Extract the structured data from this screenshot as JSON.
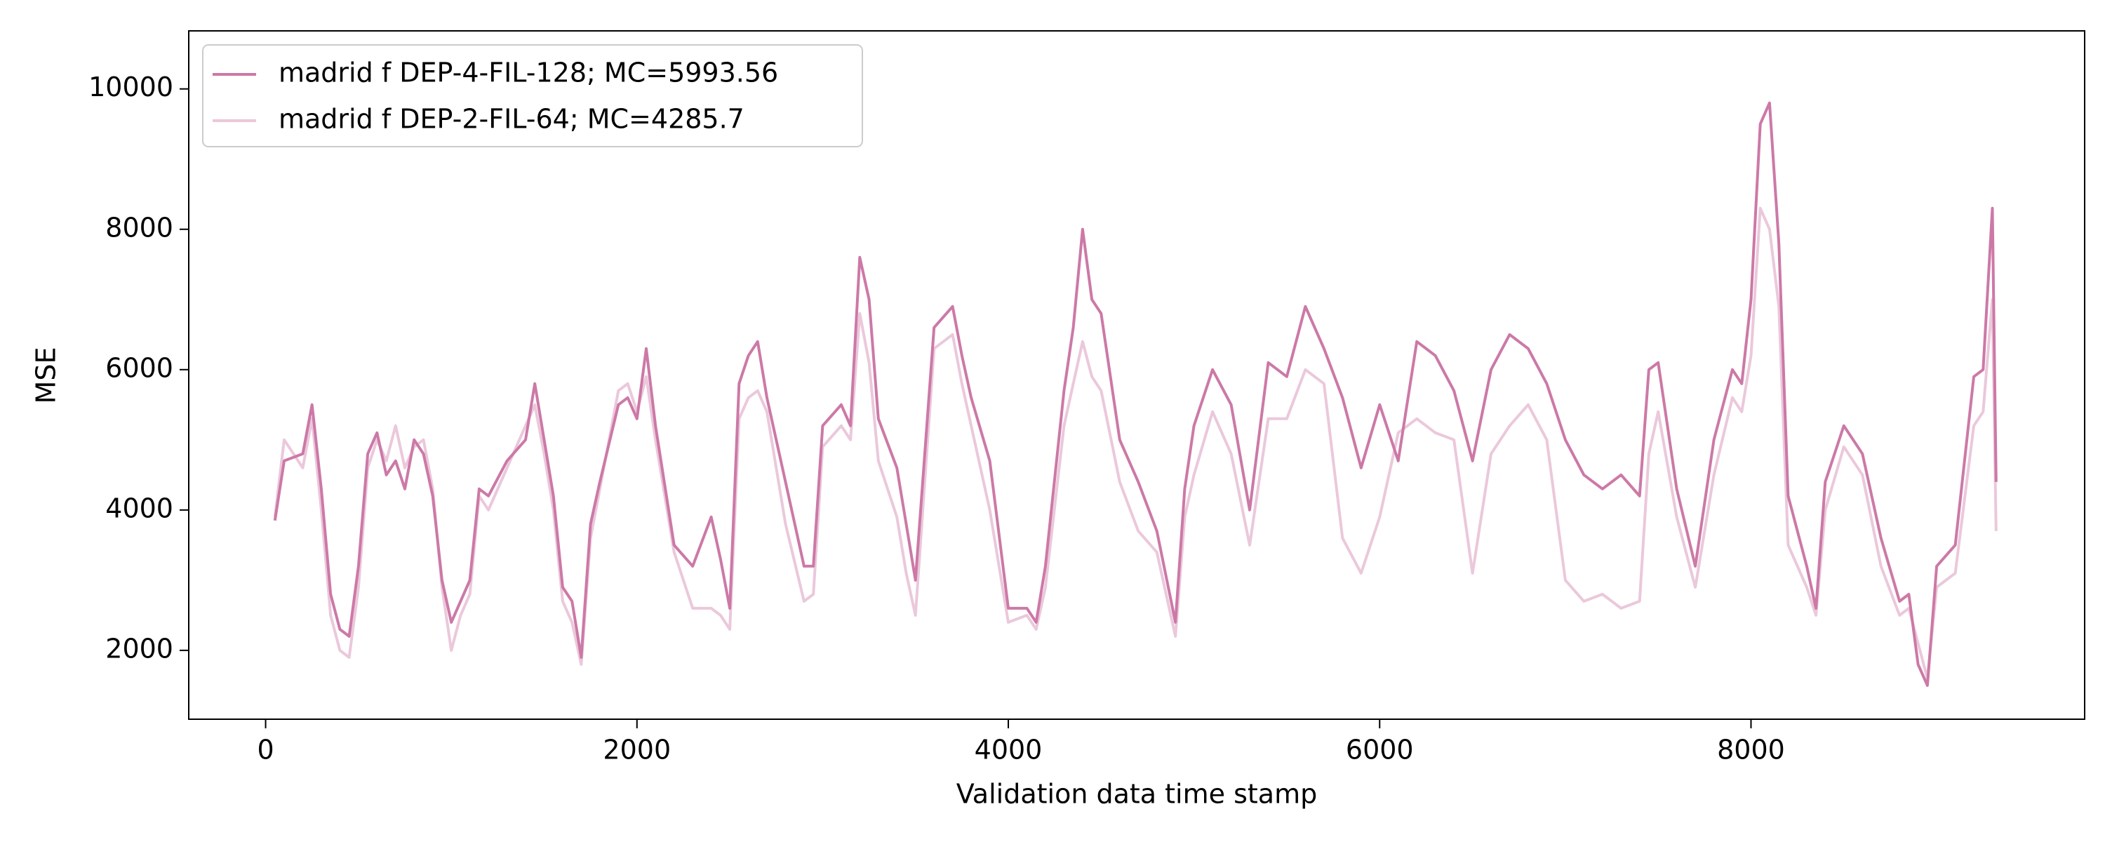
{
  "chart_data": {
    "type": "line",
    "xlabel": "Validation data time stamp",
    "ylabel": "MSE",
    "xlim": [
      -414,
      9797
    ],
    "ylim": [
      1019,
      10827
    ],
    "xticks": [
      0,
      2000,
      4000,
      6000,
      8000
    ],
    "yticks": [
      2000,
      4000,
      6000,
      8000,
      10000
    ],
    "legend": "upper left",
    "x": [
      50,
      100,
      200,
      250,
      300,
      350,
      400,
      450,
      500,
      550,
      600,
      650,
      700,
      750,
      800,
      850,
      900,
      950,
      1000,
      1050,
      1100,
      1150,
      1200,
      1300,
      1400,
      1450,
      1500,
      1550,
      1600,
      1650,
      1700,
      1750,
      1800,
      1900,
      1950,
      2000,
      2050,
      2100,
      2200,
      2300,
      2400,
      2450,
      2500,
      2550,
      2600,
      2650,
      2700,
      2800,
      2900,
      2950,
      3000,
      3100,
      3150,
      3200,
      3250,
      3300,
      3400,
      3450,
      3500,
      3600,
      3700,
      3750,
      3800,
      3900,
      4000,
      4100,
      4150,
      4200,
      4300,
      4350,
      4400,
      4450,
      4500,
      4600,
      4700,
      4800,
      4900,
      4950,
      5000,
      5100,
      5200,
      5300,
      5400,
      5500,
      5600,
      5700,
      5800,
      5900,
      6000,
      6100,
      6200,
      6300,
      6400,
      6500,
      6600,
      6700,
      6800,
      6900,
      7000,
      7100,
      7200,
      7300,
      7400,
      7450,
      7500,
      7600,
      7700,
      7800,
      7900,
      7950,
      8000,
      8050,
      8100,
      8150,
      8200,
      8300,
      8350,
      8400,
      8500,
      8600,
      8700,
      8800,
      8850,
      8900,
      8950,
      9000,
      9100,
      9200,
      9250,
      9300,
      9320
    ],
    "series": [
      {
        "name": "madrid f DEP-4-FIL-128; MC=5993.56",
        "color": "#cc79a7",
        "values": [
          3850,
          4700,
          4800,
          5500,
          4300,
          2800,
          2300,
          2200,
          3200,
          4800,
          5100,
          4500,
          4700,
          4300,
          5000,
          4800,
          4200,
          3000,
          2400,
          2700,
          3000,
          4300,
          4200,
          4700,
          5000,
          5800,
          5000,
          4200,
          2900,
          2700,
          1900,
          3800,
          4400,
          5500,
          5600,
          5300,
          6300,
          5200,
          3500,
          3200,
          3900,
          3300,
          2600,
          5800,
          6200,
          6400,
          5600,
          4400,
          3200,
          3200,
          5200,
          5500,
          5200,
          7600,
          7000,
          5300,
          4600,
          3800,
          3000,
          6600,
          6900,
          6200,
          5600,
          4700,
          2600,
          2600,
          2400,
          3200,
          5700,
          6600,
          8000,
          7000,
          6800,
          5000,
          4400,
          3700,
          2400,
          4300,
          5200,
          6000,
          5500,
          4000,
          6100,
          5900,
          6900,
          6300,
          5600,
          4600,
          5500,
          4700,
          6400,
          6200,
          5700,
          4700,
          6000,
          6500,
          6300,
          5800,
          5000,
          4500,
          4300,
          4500,
          4200,
          6000,
          6100,
          4300,
          3200,
          5000,
          6000,
          5800,
          7000,
          9500,
          9800,
          7800,
          4200,
          3200,
          2600,
          4400,
          5200,
          4800,
          3600,
          2700,
          2800,
          1800,
          1500,
          3200,
          3500,
          5900,
          6000,
          8300,
          4400
        ]
      },
      {
        "name": "madrid f DEP-2-FIL-64; MC=4285.7",
        "color": "#ebc8db",
        "values": [
          3900,
          5000,
          4600,
          5300,
          4000,
          2500,
          2000,
          1900,
          2900,
          4600,
          5000,
          4700,
          5200,
          4600,
          4900,
          5000,
          4300,
          2900,
          2000,
          2500,
          2800,
          4200,
          4000,
          4600,
          5200,
          5500,
          4800,
          4000,
          2700,
          2400,
          1800,
          3600,
          4300,
          5700,
          5800,
          5400,
          5900,
          5000,
          3400,
          2600,
          2600,
          2500,
          2300,
          5300,
          5600,
          5700,
          5400,
          3800,
          2700,
          2800,
          4900,
          5200,
          5000,
          6800,
          6100,
          4700,
          3900,
          3100,
          2500,
          6300,
          6500,
          5800,
          5200,
          4000,
          2400,
          2500,
          2300,
          2900,
          5200,
          5800,
          6400,
          5900,
          5700,
          4400,
          3700,
          3400,
          2200,
          3900,
          4500,
          5400,
          4800,
          3500,
          5300,
          5300,
          6000,
          5800,
          3600,
          3100,
          3900,
          5100,
          5300,
          5100,
          5000,
          3100,
          4800,
          5200,
          5500,
          5000,
          3000,
          2700,
          2800,
          2600,
          2700,
          4800,
          5400,
          3900,
          2900,
          4500,
          5600,
          5400,
          6200,
          8300,
          8000,
          6900,
          3500,
          2900,
          2500,
          4000,
          4900,
          4500,
          3200,
          2500,
          2600,
          2100,
          1600,
          2900,
          3100,
          5200,
          5400,
          7000,
          3700
        ]
      }
    ]
  }
}
